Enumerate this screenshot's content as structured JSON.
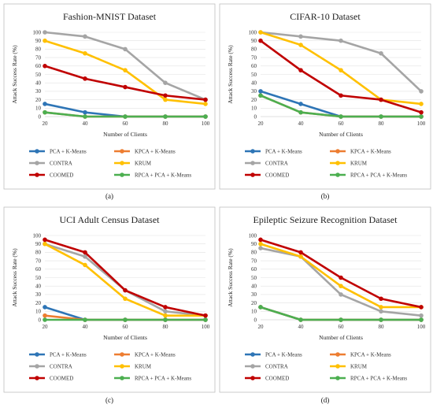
{
  "chart_data": [
    {
      "type": "line",
      "title": "Fashion-MNIST Dataset",
      "xlabel": "Number of Clients",
      "ylabel": "Attack Success Rate (%)",
      "x": [
        20,
        40,
        60,
        80,
        100
      ],
      "ylim": [
        0,
        100
      ],
      "yticks": [
        0,
        10,
        20,
        30,
        40,
        50,
        60,
        70,
        80,
        90,
        100
      ],
      "caption": "(a)",
      "series": [
        {
          "name": "PCA + K-Means",
          "color": "#2e75b6",
          "values": [
            15,
            5,
            0,
            0,
            0
          ]
        },
        {
          "name": "KPCA + K-Means",
          "color": "#ed7d31",
          "values": [
            5,
            0,
            0,
            0,
            0
          ]
        },
        {
          "name": "CONTRA",
          "color": "#a5a5a5",
          "values": [
            100,
            95,
            80,
            40,
            20
          ]
        },
        {
          "name": "KRUM",
          "color": "#ffc000",
          "values": [
            90,
            75,
            55,
            20,
            15
          ]
        },
        {
          "name": "COOMED",
          "color": "#c00000",
          "values": [
            60,
            45,
            35,
            25,
            20
          ]
        },
        {
          "name": "RPCA + PCA + K-Means",
          "color": "#4caf50",
          "values": [
            5,
            0,
            0,
            0,
            0
          ]
        }
      ]
    },
    {
      "type": "line",
      "title": "CIFAR-10 Dataset",
      "xlabel": "Number of Clients",
      "ylabel": "Attack Success Rate (%)",
      "x": [
        20,
        40,
        60,
        80,
        100
      ],
      "ylim": [
        0,
        100
      ],
      "yticks": [
        0,
        10,
        20,
        30,
        40,
        50,
        60,
        70,
        80,
        90,
        100
      ],
      "caption": "(b)",
      "series": [
        {
          "name": "PCA + K-Means",
          "color": "#2e75b6",
          "values": [
            30,
            15,
            0,
            0,
            0
          ]
        },
        {
          "name": "KPCA + K-Means",
          "color": "#ed7d31",
          "values": [
            25,
            5,
            0,
            0,
            0
          ]
        },
        {
          "name": "CONTRA",
          "color": "#a5a5a5",
          "values": [
            100,
            95,
            90,
            75,
            30
          ]
        },
        {
          "name": "KRUM",
          "color": "#ffc000",
          "values": [
            100,
            85,
            55,
            20,
            15
          ]
        },
        {
          "name": "COOMED",
          "color": "#c00000",
          "values": [
            90,
            55,
            25,
            20,
            5
          ]
        },
        {
          "name": "RPCA + PCA + K-Means",
          "color": "#4caf50",
          "values": [
            25,
            5,
            0,
            0,
            0
          ]
        }
      ]
    },
    {
      "type": "line",
      "title": "UCI Adult Census Dataset",
      "xlabel": "Number of Clients",
      "ylabel": "Attack Success Rate (%)",
      "x": [
        20,
        40,
        60,
        80,
        100
      ],
      "ylim": [
        0,
        100
      ],
      "yticks": [
        0,
        10,
        20,
        30,
        40,
        50,
        60,
        70,
        80,
        90,
        100
      ],
      "caption": "(c)",
      "series": [
        {
          "name": "PCA + K-Means",
          "color": "#2e75b6",
          "values": [
            15,
            0,
            0,
            0,
            0
          ]
        },
        {
          "name": "KPCA + K-Means",
          "color": "#ed7d31",
          "values": [
            5,
            0,
            0,
            0,
            0
          ]
        },
        {
          "name": "CONTRA",
          "color": "#a5a5a5",
          "values": [
            90,
            75,
            35,
            10,
            5
          ]
        },
        {
          "name": "KRUM",
          "color": "#ffc000",
          "values": [
            90,
            65,
            25,
            5,
            5
          ]
        },
        {
          "name": "COOMED",
          "color": "#c00000",
          "values": [
            95,
            80,
            35,
            15,
            5
          ]
        },
        {
          "name": "RPCA + PCA + K-Means",
          "color": "#4caf50",
          "values": [
            0,
            0,
            0,
            0,
            0
          ]
        }
      ]
    },
    {
      "type": "line",
      "title": "Epileptic Seizure Recognition Dataset",
      "xlabel": "Number of Clients",
      "ylabel": "Attack Success Rate (%)",
      "x": [
        20,
        40,
        60,
        80,
        100
      ],
      "ylim": [
        0,
        100
      ],
      "yticks": [
        0,
        10,
        20,
        30,
        40,
        50,
        60,
        70,
        80,
        90,
        100
      ],
      "caption": "(d)",
      "series": [
        {
          "name": "PCA + K-Means",
          "color": "#2e75b6",
          "values": [
            15,
            0,
            0,
            0,
            0
          ]
        },
        {
          "name": "KPCA + K-Means",
          "color": "#ed7d31",
          "values": [
            15,
            0,
            0,
            0,
            0
          ]
        },
        {
          "name": "CONTRA",
          "color": "#a5a5a5",
          "values": [
            85,
            75,
            30,
            10,
            5
          ]
        },
        {
          "name": "KRUM",
          "color": "#ffc000",
          "values": [
            90,
            75,
            40,
            15,
            15
          ]
        },
        {
          "name": "COOMED",
          "color": "#c00000",
          "values": [
            95,
            80,
            50,
            25,
            15
          ]
        },
        {
          "name": "RPCA + PCA + K-Means",
          "color": "#4caf50",
          "values": [
            15,
            0,
            0,
            0,
            0
          ]
        }
      ]
    }
  ]
}
